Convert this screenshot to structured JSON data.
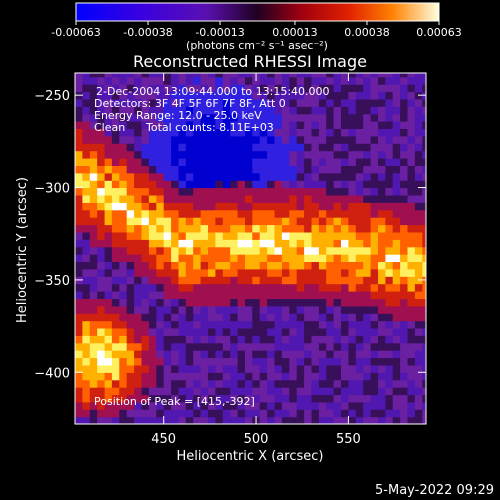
{
  "chart_data": {
    "type": "heatmap",
    "title": "Reconstructed RHESSI Image",
    "xlabel": "Heliocentric X (arcsec)",
    "ylabel": "Heliocentric Y (arcsec)",
    "xlim": [
      402,
      592
    ],
    "ylim": [
      -428,
      -238
    ],
    "x_ticks": [
      450,
      500,
      550
    ],
    "y_ticks": [
      -250,
      -300,
      -350,
      -400
    ],
    "colorbar": {
      "ticks": [
        "-0.00063",
        "-0.00038",
        "-0.00013",
        "0.00013",
        "0.00038",
        "0.00063"
      ],
      "min": -0.00063,
      "max": 0.00063,
      "units_label": "(photons cm⁻² s⁻¹ asec⁻²)"
    },
    "annotations": {
      "time_range": "2-Dec-2004 13:09:44.000 to 13:15:40.000",
      "detectors": "Detectors: 3F 4F 5F 6F 7F 8F, Att 0",
      "energy_range": "Energy Range: 12.0 - 25.0 keV",
      "algorithm": "Clean",
      "total_counts": "Total counts: 8.11E+03",
      "peak_position": "Position of Peak = [415,-392]"
    },
    "peak": [
      415,
      -392
    ],
    "colors": [
      "#0000d0",
      "#3020e0",
      "#5018b0",
      "#6a20a0",
      "#38105a",
      "#a01050",
      "#d02010",
      "#ff6000",
      "#ffb000",
      "#fff060",
      "#ffffff"
    ]
  },
  "footer": {
    "timestamp": "5-May-2022 09:29"
  }
}
